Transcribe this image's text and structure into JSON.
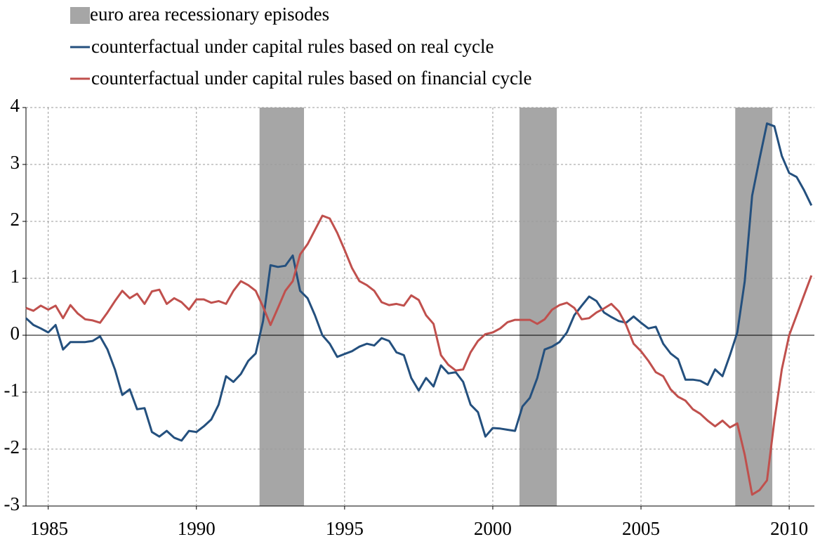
{
  "chart_data": {
    "type": "line",
    "x": [
      1984.25,
      1984.5,
      1984.75,
      1985,
      1985.25,
      1985.5,
      1985.75,
      1986,
      1986.25,
      1986.5,
      1986.75,
      1987,
      1987.25,
      1987.5,
      1987.75,
      1988,
      1988.25,
      1988.5,
      1988.75,
      1989,
      1989.25,
      1989.5,
      1989.75,
      1990,
      1990.25,
      1990.5,
      1990.75,
      1991,
      1991.25,
      1991.5,
      1991.75,
      1992,
      1992.25,
      1992.5,
      1992.75,
      1993,
      1993.25,
      1993.5,
      1993.75,
      1994,
      1994.25,
      1994.5,
      1994.75,
      1995,
      1995.25,
      1995.5,
      1995.75,
      1996,
      1996.25,
      1996.5,
      1996.75,
      1997,
      1997.25,
      1997.5,
      1997.75,
      1998,
      1998.25,
      1998.5,
      1998.75,
      1999,
      1999.25,
      1999.5,
      1999.75,
      2000,
      2000.25,
      2000.5,
      2000.75,
      2001,
      2001.25,
      2001.5,
      2001.75,
      2002,
      2002.25,
      2002.5,
      2002.75,
      2003,
      2003.25,
      2003.5,
      2003.75,
      2004,
      2004.25,
      2004.5,
      2004.75,
      2005,
      2005.25,
      2005.5,
      2005.75,
      2006,
      2006.25,
      2006.5,
      2006.75,
      2007,
      2007.25,
      2007.5,
      2007.75,
      2008,
      2008.25,
      2008.5,
      2008.75,
      2009,
      2009.25,
      2009.5,
      2009.75,
      2010,
      2010.25,
      2010.5,
      2010.75
    ],
    "series": [
      {
        "name": "counterfactual under capital rules based on real cycle",
        "color": "#24507e",
        "values": [
          0.3,
          0.18,
          0.12,
          0.05,
          0.18,
          -0.25,
          -0.12,
          -0.12,
          -0.12,
          -0.1,
          -0.02,
          -0.25,
          -0.6,
          -1.05,
          -0.95,
          -1.3,
          -1.28,
          -1.7,
          -1.78,
          -1.68,
          -1.8,
          -1.85,
          -1.68,
          -1.7,
          -1.6,
          -1.48,
          -1.22,
          -0.72,
          -0.82,
          -0.68,
          -0.45,
          -0.32,
          0.25,
          1.23,
          1.2,
          1.22,
          1.4,
          0.78,
          0.65,
          0.35,
          0.0,
          -0.15,
          -0.38,
          -0.33,
          -0.28,
          -0.2,
          -0.15,
          -0.18,
          -0.05,
          -0.1,
          -0.3,
          -0.35,
          -0.75,
          -0.97,
          -0.75,
          -0.9,
          -0.53,
          -0.67,
          -0.65,
          -0.82,
          -1.22,
          -1.35,
          -1.78,
          -1.63,
          -1.64,
          -1.66,
          -1.68,
          -1.25,
          -1.1,
          -0.75,
          -0.25,
          -0.2,
          -0.12,
          0.05,
          0.35,
          0.52,
          0.68,
          0.6,
          0.4,
          0.32,
          0.25,
          0.22,
          0.33,
          0.22,
          0.12,
          0.15,
          -0.15,
          -0.32,
          -0.42,
          -0.78,
          -0.78,
          -0.8,
          -0.87,
          -0.6,
          -0.72,
          -0.35,
          0.05,
          0.95,
          2.45,
          3.1,
          3.72,
          3.67,
          3.15,
          2.85,
          2.78,
          2.55,
          2.28
        ]
      },
      {
        "name": "counterfactual under capital rules based on financial cycle",
        "color": "#c0504d",
        "values": [
          0.48,
          0.43,
          0.52,
          0.45,
          0.52,
          0.3,
          0.53,
          0.38,
          0.28,
          0.26,
          0.22,
          0.4,
          0.6,
          0.78,
          0.65,
          0.73,
          0.55,
          0.77,
          0.8,
          0.55,
          0.65,
          0.58,
          0.45,
          0.63,
          0.63,
          0.57,
          0.6,
          0.55,
          0.78,
          0.95,
          0.88,
          0.78,
          0.5,
          0.18,
          0.48,
          0.78,
          0.95,
          1.42,
          1.6,
          1.85,
          2.1,
          2.05,
          1.8,
          1.5,
          1.18,
          0.95,
          0.88,
          0.78,
          0.58,
          0.53,
          0.55,
          0.52,
          0.7,
          0.62,
          0.35,
          0.2,
          -0.35,
          -0.52,
          -0.62,
          -0.6,
          -0.3,
          -0.1,
          0.02,
          0.05,
          0.12,
          0.23,
          0.27,
          0.27,
          0.27,
          0.2,
          0.28,
          0.45,
          0.53,
          0.57,
          0.48,
          0.28,
          0.3,
          0.4,
          0.47,
          0.55,
          0.42,
          0.18,
          -0.15,
          -0.28,
          -0.45,
          -0.65,
          -0.72,
          -0.95,
          -1.08,
          -1.15,
          -1.3,
          -1.38,
          -1.5,
          -1.6,
          -1.5,
          -1.62,
          -1.55,
          -2.1,
          -2.8,
          -2.72,
          -2.55,
          -1.5,
          -0.6,
          0.0,
          0.35,
          0.7,
          1.05
        ]
      }
    ],
    "recessions": {
      "name": "euro area recessionary episodes",
      "color": "#a6a6a6",
      "periods": [
        [
          1992.13,
          1993.63
        ],
        [
          2000.9,
          2002.16
        ],
        [
          2008.18,
          2009.43
        ]
      ]
    },
    "xlim": [
      1984.25,
      2010.85
    ],
    "xticks": [
      1985,
      1990,
      1995,
      2000,
      2005,
      2010
    ],
    "ylim": [
      -3,
      4
    ],
    "yticks": [
      -3,
      -2,
      -1,
      0,
      1,
      2,
      3,
      4
    ],
    "grid": true
  }
}
